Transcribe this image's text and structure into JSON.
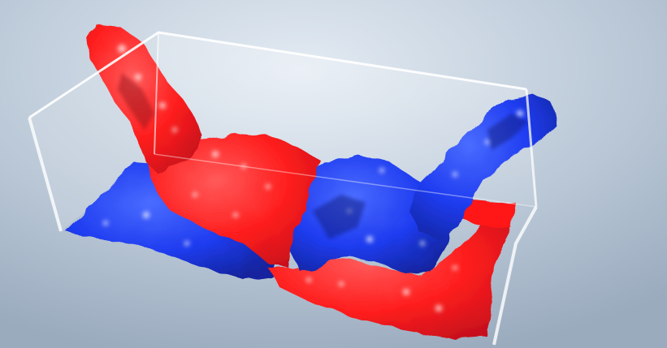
{
  "scene": {
    "subject": "fluid-simulation-tank",
    "colors": {
      "background_top": "#d9e3ee",
      "background_bottom": "#9fb0c3",
      "fluid_red": "#ff1e1e",
      "fluid_red_dark": "#c40f1a",
      "fluid_blue": "#1f3cf0",
      "fluid_blue_dark": "#0f1f9c",
      "highlight": "#ffffff",
      "glass_edge": "#ffffff"
    }
  }
}
